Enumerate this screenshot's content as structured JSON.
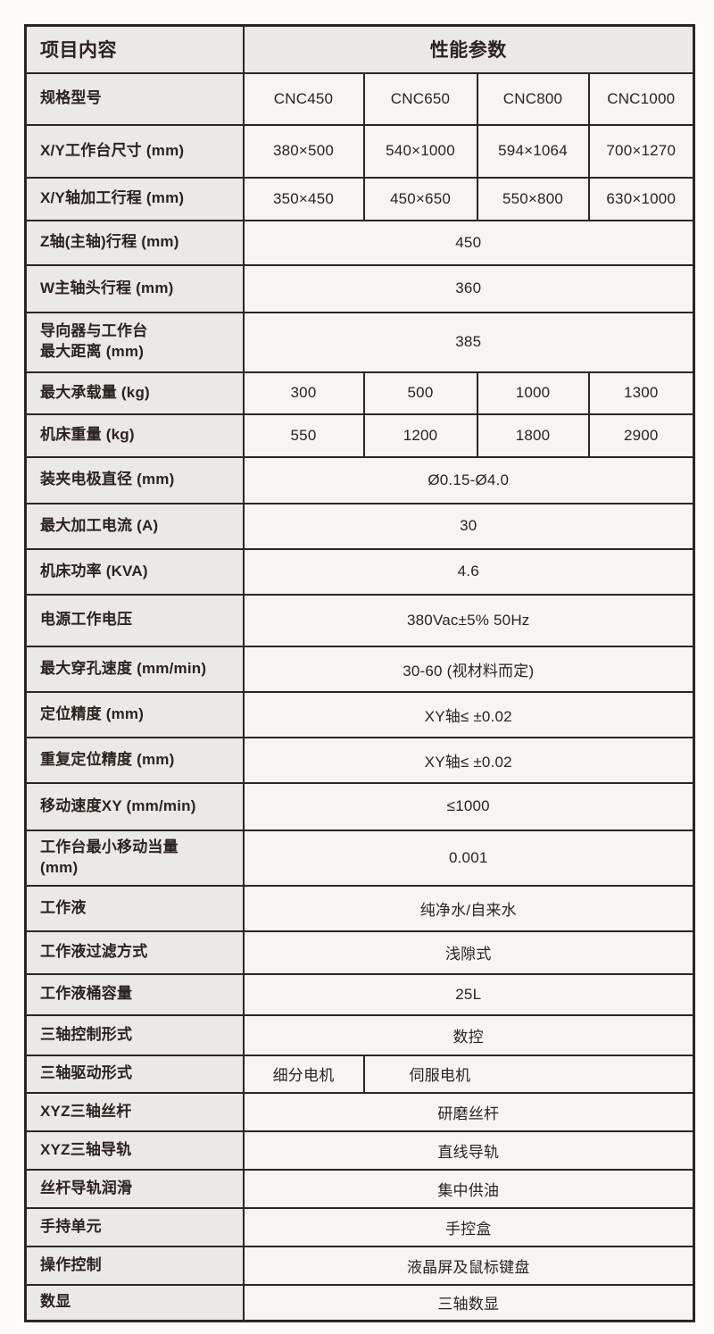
{
  "colors": {
    "border": "#2b2523",
    "label_bg": "#ebe9e7",
    "value_bg": "#f6f5f3",
    "page_bg": "#fcfbfa",
    "text": "#2b2320"
  },
  "table": {
    "header": {
      "items_col": "项目内容",
      "params_col": "性能参数"
    },
    "rows": [
      {
        "label": "规格型号",
        "cells": [
          {
            "text": "CNC450",
            "span": 1
          },
          {
            "text": "CNC650",
            "span": 1
          },
          {
            "text": "CNC800",
            "span": 1
          },
          {
            "text": "CNC1000",
            "span": 1
          }
        ]
      },
      {
        "label": "X/Y工作台尺寸 (mm)",
        "cells": [
          {
            "text": "380×500",
            "span": 1
          },
          {
            "text": "540×1000",
            "span": 1
          },
          {
            "text": "594×1064",
            "span": 1
          },
          {
            "text": "700×1270",
            "span": 1
          }
        ]
      },
      {
        "label": "X/Y轴加工行程 (mm)",
        "cells": [
          {
            "text": "350×450",
            "span": 1
          },
          {
            "text": "450×650",
            "span": 1
          },
          {
            "text": "550×800",
            "span": 1
          },
          {
            "text": "630×1000",
            "span": 1
          }
        ]
      },
      {
        "label": "Z轴(主轴)行程 (mm)",
        "cells": [
          {
            "text": "450",
            "span": 4
          }
        ]
      },
      {
        "label": "W主轴头行程 (mm)",
        "cells": [
          {
            "text": "360",
            "span": 4
          }
        ]
      },
      {
        "label": "导向器与工作台\n最大距离 (mm)",
        "cells": [
          {
            "text": "385",
            "span": 4
          }
        ]
      },
      {
        "label": "最大承载量 (kg)",
        "cells": [
          {
            "text": "300",
            "span": 1
          },
          {
            "text": "500",
            "span": 1
          },
          {
            "text": "1000",
            "span": 1
          },
          {
            "text": "1300",
            "span": 1
          }
        ]
      },
      {
        "label": "机床重量 (kg)",
        "cells": [
          {
            "text": "550",
            "span": 1
          },
          {
            "text": "1200",
            "span": 1
          },
          {
            "text": "1800",
            "span": 1
          },
          {
            "text": "2900",
            "span": 1
          }
        ]
      },
      {
        "label": "装夹电极直径 (mm)",
        "cells": [
          {
            "text": "Ø0.15-Ø4.0",
            "span": 4
          }
        ]
      },
      {
        "label": "最大加工电流 (A)",
        "cells": [
          {
            "text": "30",
            "span": 4
          }
        ]
      },
      {
        "label": "机床功率 (KVA)",
        "cells": [
          {
            "text": "4.6",
            "span": 4
          }
        ]
      },
      {
        "label": "电源工作电压",
        "cells": [
          {
            "text": "380Vac±5% 50Hz",
            "span": 4
          }
        ]
      },
      {
        "label": "最大穿孔速度 (mm/min)",
        "cells": [
          {
            "text": "30-60 (视材料而定)",
            "span": 4
          }
        ]
      },
      {
        "label": "定位精度 (mm)",
        "cells": [
          {
            "text": "XY轴≤ ±0.02",
            "span": 4
          }
        ]
      },
      {
        "label": "重复定位精度 (mm)",
        "cells": [
          {
            "text": "XY轴≤ ±0.02",
            "span": 4
          }
        ]
      },
      {
        "label": "移动速度XY (mm/min)",
        "cells": [
          {
            "text": "≤1000",
            "span": 4
          }
        ]
      },
      {
        "label": "工作台最小移动当量\n(mm)",
        "cells": [
          {
            "text": "0.001",
            "span": 4
          }
        ]
      },
      {
        "label": "工作液",
        "cells": [
          {
            "text": "纯净水/自来水",
            "span": 4
          }
        ]
      },
      {
        "label": "工作液过滤方式",
        "cells": [
          {
            "text": "浅隙式",
            "span": 4
          }
        ]
      },
      {
        "label": "工作液桶容量",
        "cells": [
          {
            "text": "25L",
            "span": 4
          }
        ]
      },
      {
        "label": "三轴控制形式",
        "cells": [
          {
            "text": "数控",
            "span": 4
          }
        ]
      },
      {
        "label": "三轴驱动形式",
        "cells": [
          {
            "text": "细分电机",
            "span": 1
          },
          {
            "text": "伺服电机",
            "span": 3,
            "align": "left"
          }
        ]
      },
      {
        "label": "XYZ三轴丝杆",
        "cells": [
          {
            "text": "研磨丝杆",
            "span": 4
          }
        ]
      },
      {
        "label": "XYZ三轴导轨",
        "cells": [
          {
            "text": "直线导轨",
            "span": 4
          }
        ]
      },
      {
        "label": "丝杆导轨润滑",
        "cells": [
          {
            "text": "集中供油",
            "span": 4
          }
        ]
      },
      {
        "label": "手持单元",
        "cells": [
          {
            "text": "手控盒",
            "span": 4
          }
        ]
      },
      {
        "label": "操作控制",
        "cells": [
          {
            "text": "液晶屏及鼠标键盘",
            "span": 4
          }
        ]
      },
      {
        "label": "数显",
        "cells": [
          {
            "text": "三轴数显",
            "span": 4
          }
        ]
      }
    ]
  }
}
